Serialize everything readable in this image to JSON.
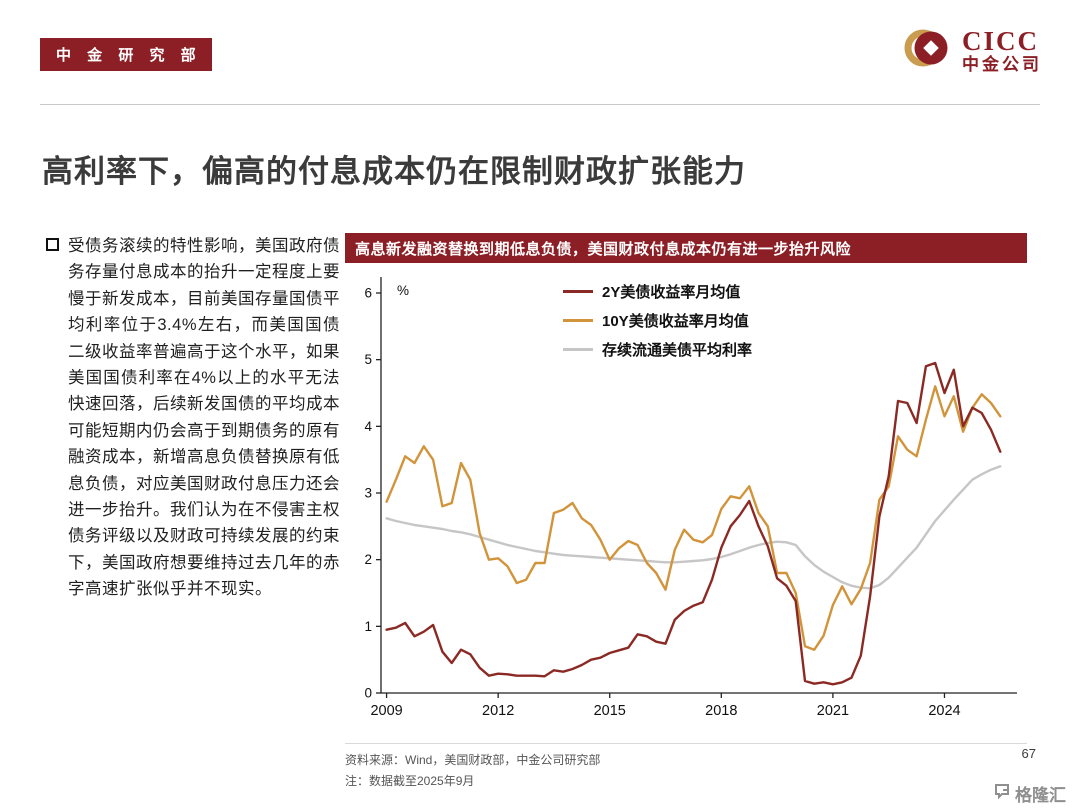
{
  "header": {
    "dept_badge": "中 金 研 究 部",
    "logo_name": "CICC",
    "logo_cn": "中金公司"
  },
  "slide": {
    "title": "高利率下，偏高的付息成本仍在限制财政扩张能力",
    "bullet_text": "受债务滚续的特性影响，美国政府债务存量付息成本的抬升一定程度上要慢于新发成本，目前美国存量国债平均利率位于3.4%左右，而美国国债二级收益率普遍高于这个水平，如果美国国债利率在4%以上的水平无法快速回落，后续新发国债的平均成本可能短期内仍会高于到期债务的原有融资成本，新增高息负债替换原有低息负债，对应美国财政付息压力还会进一步抬升。我们认为在不侵害主权债务评级以及财政可持续发展的约束下，美国政府想要维持过去几年的赤字高速扩张似乎并不现实。",
    "page_number": "67"
  },
  "chart": {
    "header": "高息新发融资替换到期低息负债，美国财政付息成本仍有进一步抬升风险",
    "source_line1": "资料来源：Wind，美国财政部，中金公司研究部",
    "source_line2": "注：数据截至2025年9月"
  },
  "watermark": {
    "label": "格隆汇"
  },
  "colors": {
    "brand_maroon": "#8C1F26",
    "title_text": "#3B3B3B"
  },
  "chart_data": {
    "type": "line",
    "title": "高息新发融资替换到期低息负债，美国财政付息成本仍有进一步抬升风险",
    "xlabel": "",
    "ylabel": "%",
    "ylim": [
      0,
      6
    ],
    "xlim": [
      2008.85,
      2025.95
    ],
    "yticks": [
      0,
      1,
      2,
      3,
      4,
      5,
      6
    ],
    "xticks": [
      2009,
      2012,
      2015,
      2018,
      2021,
      2024
    ],
    "grid": false,
    "legend_position": "top-center-inside",
    "x_start": 2009.0,
    "x_step": 0.25,
    "x_unit": "year (quarterly samples of monthly data, through 2025-09)",
    "series": [
      {
        "name": "2Y美债收益率月均值",
        "color": "#8B2A24",
        "values": [
          0.95,
          0.98,
          1.05,
          0.85,
          0.92,
          1.02,
          0.62,
          0.45,
          0.65,
          0.58,
          0.38,
          0.26,
          0.29,
          0.28,
          0.26,
          0.26,
          0.26,
          0.25,
          0.34,
          0.32,
          0.36,
          0.42,
          0.5,
          0.53,
          0.6,
          0.64,
          0.68,
          0.88,
          0.85,
          0.77,
          0.74,
          1.1,
          1.23,
          1.31,
          1.36,
          1.7,
          2.18,
          2.5,
          2.67,
          2.88,
          2.5,
          2.2,
          1.72,
          1.61,
          1.38,
          0.18,
          0.14,
          0.16,
          0.13,
          0.16,
          0.23,
          0.56,
          1.45,
          2.65,
          3.25,
          4.38,
          4.35,
          4.05,
          4.9,
          4.95,
          4.5,
          4.85,
          4.0,
          4.28,
          4.2,
          3.95,
          3.62
        ]
      },
      {
        "name": "10Y美债收益率月均值",
        "color": "#D2943B",
        "values": [
          2.87,
          3.2,
          3.55,
          3.45,
          3.7,
          3.5,
          2.8,
          2.85,
          3.45,
          3.2,
          2.4,
          2.0,
          2.02,
          1.9,
          1.65,
          1.7,
          1.95,
          1.95,
          2.7,
          2.75,
          2.85,
          2.62,
          2.52,
          2.3,
          2.0,
          2.17,
          2.28,
          2.22,
          1.95,
          1.8,
          1.55,
          2.15,
          2.45,
          2.3,
          2.26,
          2.37,
          2.76,
          2.95,
          2.92,
          3.1,
          2.7,
          2.5,
          1.8,
          1.8,
          1.5,
          0.7,
          0.65,
          0.86,
          1.32,
          1.6,
          1.33,
          1.56,
          1.95,
          2.9,
          3.1,
          3.85,
          3.65,
          3.55,
          4.1,
          4.6,
          4.15,
          4.45,
          3.92,
          4.28,
          4.48,
          4.35,
          4.15
        ]
      },
      {
        "name": "存续流通美债平均利率",
        "color": "#C6C6C6",
        "values": [
          2.62,
          2.58,
          2.55,
          2.52,
          2.5,
          2.48,
          2.46,
          2.43,
          2.41,
          2.38,
          2.34,
          2.3,
          2.26,
          2.22,
          2.19,
          2.16,
          2.13,
          2.11,
          2.09,
          2.07,
          2.06,
          2.05,
          2.04,
          2.03,
          2.02,
          2.01,
          2.0,
          1.99,
          1.98,
          1.97,
          1.96,
          1.96,
          1.97,
          1.98,
          1.99,
          2.01,
          2.04,
          2.08,
          2.13,
          2.18,
          2.22,
          2.25,
          2.27,
          2.26,
          2.22,
          2.05,
          1.92,
          1.82,
          1.74,
          1.66,
          1.61,
          1.58,
          1.57,
          1.62,
          1.73,
          1.88,
          2.03,
          2.18,
          2.38,
          2.58,
          2.74,
          2.9,
          3.05,
          3.2,
          3.28,
          3.35,
          3.4
        ]
      }
    ]
  }
}
